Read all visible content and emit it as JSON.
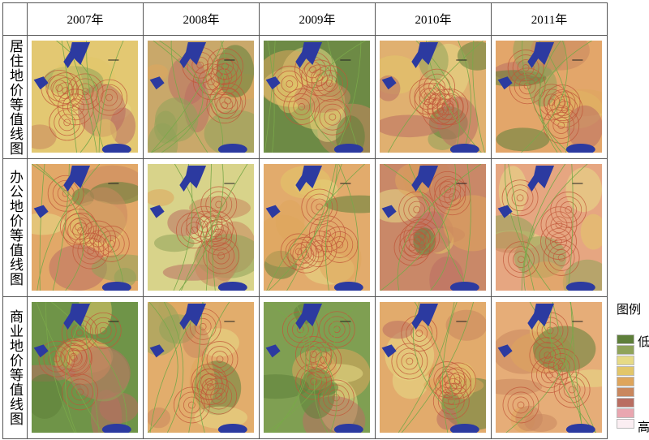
{
  "header": {
    "years": [
      "2007年",
      "2008年",
      "2009年",
      "2010年",
      "2011年"
    ]
  },
  "rows": [
    {
      "label": "居住地价等值线图"
    },
    {
      "label": "办公地价等值线图"
    },
    {
      "label": "商业地价等值线图"
    }
  ],
  "legend": {
    "title": "图例",
    "low": "低",
    "high": "高",
    "colors": [
      "#5e7f3a",
      "#8fa35a",
      "#e6da86",
      "#e2c66a",
      "#dea55c",
      "#c9875e",
      "#b96e62",
      "#e9a6b0",
      "#fbeef2"
    ]
  }
}
